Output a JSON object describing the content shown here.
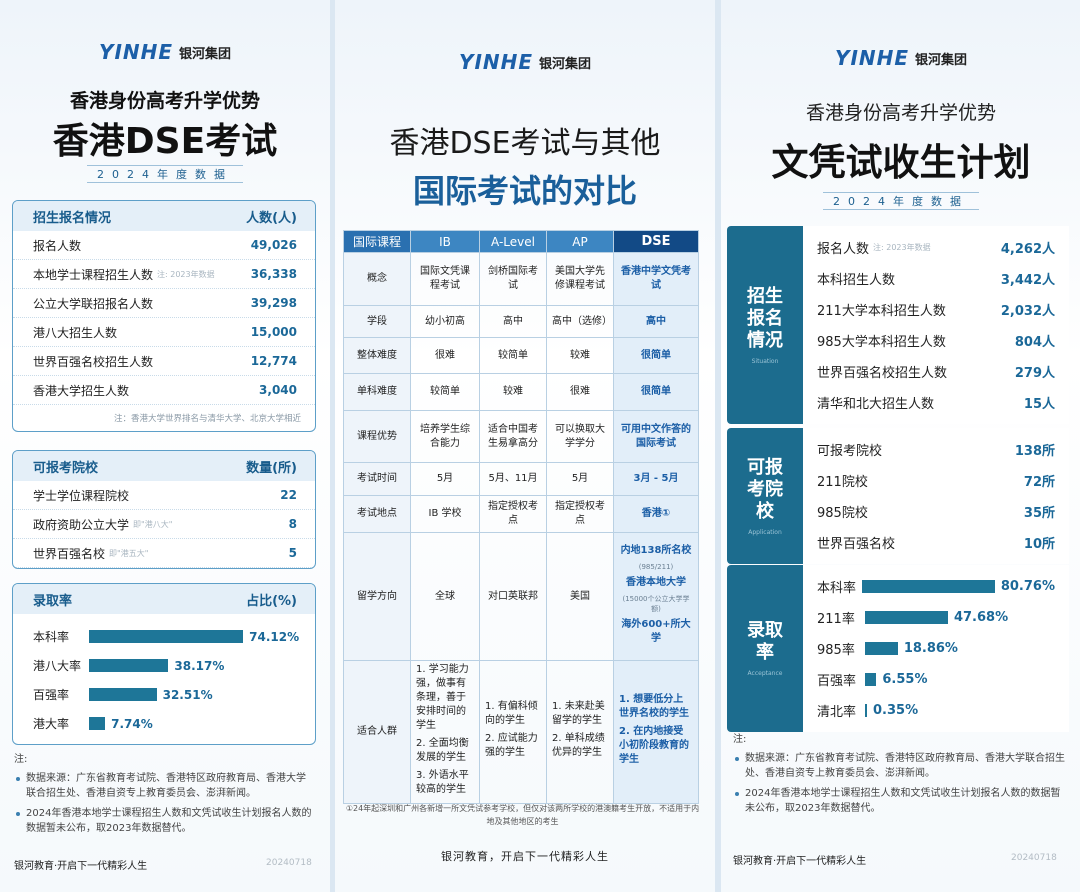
{
  "left": {
    "logo": {
      "brand": "YINHE",
      "name": "银河集团"
    },
    "subtitle": "香港身份高考升学优势",
    "title": "香港DSE考试",
    "year_tag": "2024年度数据",
    "enrollment": {
      "title": "招生报名情况",
      "unit": "人数(人)",
      "rows": [
        {
          "label": "报名人数",
          "value": "49,026"
        },
        {
          "label": "本地学士课程招生人数",
          "note": "注: 2023年数据",
          "value": "36,338"
        },
        {
          "label": "公立大学联招报名人数",
          "value": "39,298"
        },
        {
          "label": "港八大招生人数",
          "value": "15,000"
        },
        {
          "label": "世界百强名校招生人数",
          "value": "12,774"
        },
        {
          "label": "香港大学招生人数",
          "value": "3,040"
        }
      ],
      "footnote": "注：香港大学世界排名与清华大学、北京大学相近"
    },
    "schools": {
      "title": "可报考院校",
      "unit": "数量(所)",
      "rows": [
        {
          "label": "学士学位课程院校",
          "value": "22"
        },
        {
          "label": "政府资助公立大学",
          "note": "即\"港八大\"",
          "value": "8"
        },
        {
          "label": "世界百强名校",
          "note": "即\"港五大\"",
          "value": "5"
        }
      ]
    },
    "rates": {
      "title": "录取率",
      "unit": "占比(%)",
      "categories": [
        "本科率",
        "港八大率",
        "百强率",
        "港大率"
      ],
      "values": [
        74.12,
        38.17,
        32.51,
        7.74
      ],
      "value_labels": [
        "74.12%",
        "38.17%",
        "32.51%",
        "7.74%"
      ],
      "color": "#1e7698"
    },
    "notes": {
      "heading": "注:",
      "items": [
        "数据来源：广东省教育考试院、香港特区政府教育局、香港大学联合招生处、香港自资专上教育委员会、澎湃新闻。",
        "2024年香港本地学士课程招生人数和文凭试收生计划报名人数的数据暂未公布，取2023年数据替代。"
      ]
    },
    "footer": {
      "slogan": "银河教育·开启下一代精彩人生",
      "date": "20240718"
    }
  },
  "middle": {
    "logo": {
      "brand": "YINHE",
      "name": "银河集团"
    },
    "title_line1": "香港DSE考试与其他",
    "title_line2": "国际考试的对比",
    "comparison": {
      "header": [
        "国际课程",
        "IB",
        "A-Level",
        "AP",
        "DSE"
      ],
      "rows": [
        {
          "label": "概念",
          "cells": [
            "国际文凭课程考试",
            "剑桥国际考试",
            "美国大学先修课程考试",
            "香港中学文凭考试"
          ]
        },
        {
          "label": "学段",
          "cells": [
            "幼小初高",
            "高中",
            "高中（选修）",
            "高中"
          ]
        },
        {
          "label": "整体难度",
          "cells": [
            "很难",
            "较简单",
            "较难",
            "很简单"
          ]
        },
        {
          "label": "单科难度",
          "cells": [
            "较简单",
            "较难",
            "很难",
            "很简单"
          ]
        },
        {
          "label": "课程优势",
          "cells": [
            "培养学生综合能力",
            "适合中国考生易拿高分",
            "可以换取大学学分",
            "可用中文作答的国际考试"
          ]
        },
        {
          "label": "考试时间",
          "cells": [
            "5月",
            "5月、11月",
            "5月",
            "3月 - 5月"
          ]
        },
        {
          "label": "考试地点",
          "cells": [
            "IB 学校",
            "指定授权考点",
            "指定授权考点",
            "香港①"
          ]
        },
        {
          "label": "留学方向",
          "cells": [
            "全球",
            "对口英联邦",
            "美国",
            [
              "内地138所名校",
              "(985/211)",
              "香港本地大学",
              "(15000个公立大学学额)",
              "海外600+所大学"
            ]
          ]
        },
        {
          "label": "适合人群",
          "cells": [
            [
              "1. 学习能力强，做事有条理，善于安排时间的学生",
              "2. 全面均衡发展的学生",
              "3. 外语水平较高的学生"
            ],
            [
              "1. 有偏科倾向的学生",
              "2. 应试能力强的学生"
            ],
            [
              "1. 未来赴美留学的学生",
              "2. 单科成绩优异的学生"
            ],
            [
              "1. 想要低分上世界名校的学生",
              "2. 在内地接受小初阶段教育的学生"
            ]
          ]
        }
      ]
    },
    "footnote": "①24年起深圳和广州各新增一所文凭试参考学校，但仅对该两所学校的港澳籍考生开放，不适用于内地及其他地区的考生",
    "footer": "银河教育，开启下一代精彩人生"
  },
  "right": {
    "logo": {
      "brand": "YINHE",
      "name": "银河集团"
    },
    "subtitle": "香港身份高考升学优势",
    "title": "文凭试收生计划",
    "year_tag": "2024年度数据",
    "enrollment": {
      "title": "招生报名情况",
      "subtitle": "Situation",
      "rows": [
        {
          "label": "报名人数",
          "note": "注: 2023年数据",
          "value": "4,262人"
        },
        {
          "label": "本科招生人数",
          "value": "3,442人"
        },
        {
          "label": "211大学本科招生人数",
          "value": "2,032人"
        },
        {
          "label": "985大学本科招生人数",
          "value": "804人"
        },
        {
          "label": "世界百强名校招生人数",
          "value": "279人"
        },
        {
          "label": "清华和北大招生人数",
          "value": "15人"
        }
      ]
    },
    "schools": {
      "title": "可报考院校",
      "subtitle": "Application",
      "rows": [
        {
          "label": "可报考院校",
          "value": "138所"
        },
        {
          "label": "211院校",
          "value": "72所"
        },
        {
          "label": "985院校",
          "value": "35所"
        },
        {
          "label": "世界百强名校",
          "value": "10所"
        }
      ]
    },
    "rates": {
      "title": "录取率",
      "subtitle": "Acceptance",
      "categories": [
        "本科率",
        "211率",
        "985率",
        "百强率",
        "清北率"
      ],
      "values": [
        80.76,
        47.68,
        18.86,
        6.55,
        0.35
      ],
      "value_labels": [
        "80.76%",
        "47.68%",
        "18.86%",
        "6.55%",
        "0.35%"
      ],
      "color": "#1e7698"
    },
    "notes": {
      "heading": "注:",
      "items": [
        "数据来源：广东省教育考试院、香港特区政府教育局、香港大学联合招生处、香港自资专上教育委员会、澎湃新闻。",
        "2024年香港本地学士课程招生人数和文凭试收生计划报名人数的数据暂未公布，取2023年数据替代。"
      ]
    },
    "footer": {
      "slogan": "银河教育·开启下一代精彩人生",
      "date": "20240718"
    }
  }
}
